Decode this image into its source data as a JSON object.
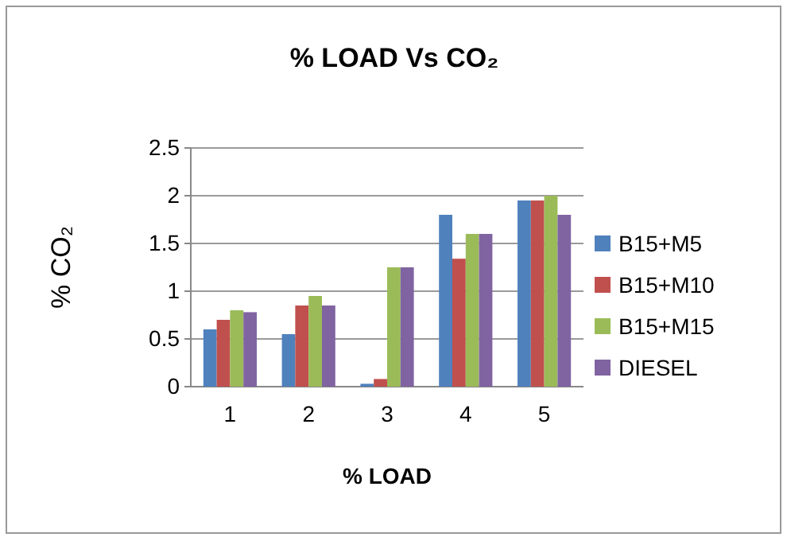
{
  "chart_data": {
    "type": "bar",
    "title": "% LOAD Vs CO₂",
    "xlabel": "% LOAD",
    "ylabel": "% CO₂",
    "categories": [
      "1",
      "2",
      "3",
      "4",
      "5"
    ],
    "series": [
      {
        "name": "B15+M5",
        "color": "#4f81bd",
        "values": [
          0.6,
          0.55,
          0.03,
          1.8,
          1.95
        ]
      },
      {
        "name": "B15+M10",
        "color": "#c0504d",
        "values": [
          0.7,
          0.85,
          0.08,
          1.34,
          1.95
        ]
      },
      {
        "name": "B15+M15",
        "color": "#9bbb59",
        "values": [
          0.8,
          0.95,
          1.25,
          1.6,
          2.0
        ]
      },
      {
        "name": "DIESEL",
        "color": "#8064a2",
        "values": [
          0.78,
          0.85,
          1.25,
          1.6,
          1.8
        ]
      }
    ],
    "ylim": [
      0,
      2.5
    ],
    "yticks": [
      0,
      0.5,
      1,
      1.5,
      2,
      2.5
    ],
    "grid": "y",
    "legend": "right"
  }
}
